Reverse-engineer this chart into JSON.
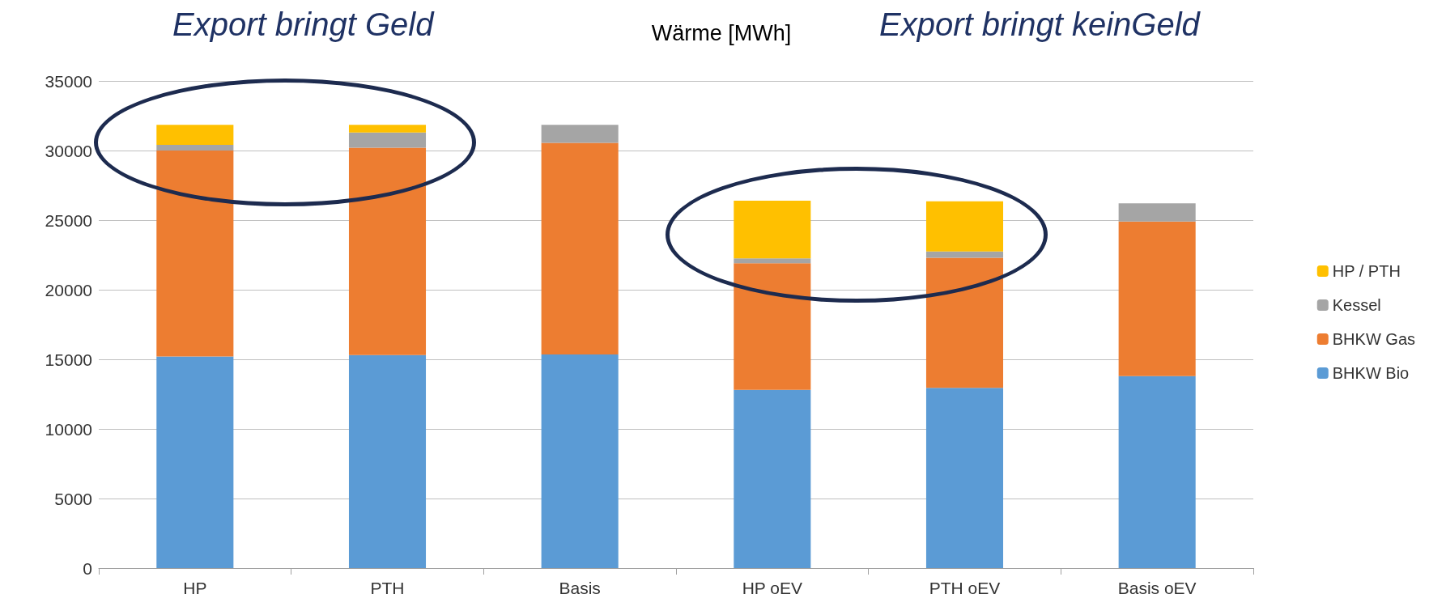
{
  "chart_data": {
    "type": "bar",
    "title": "Wärme [MWh]",
    "annotations": [
      "Export bringt Geld",
      "Export bringt keinGeld"
    ],
    "categories": [
      "HP",
      "PTH",
      "Basis",
      "HP oEV",
      "PTH oEV",
      "Basis oEV"
    ],
    "stacked": true,
    "series": [
      {
        "name": "BHKW Bio",
        "color": "#5b9bd5",
        "values": [
          15200,
          15300,
          15350,
          12800,
          12950,
          13800
        ]
      },
      {
        "name": "BHKW Gas",
        "color": "#ed7d31",
        "values": [
          14800,
          14900,
          15200,
          9100,
          9350,
          11100
        ]
      },
      {
        "name": "Kessel",
        "color": "#a5a5a5",
        "values": [
          400,
          1100,
          1300,
          350,
          450,
          1300
        ]
      },
      {
        "name": "HP / PTH",
        "color": "#ffc000",
        "values": [
          1450,
          550,
          0,
          4150,
          3600,
          0
        ]
      }
    ],
    "ylim": [
      0,
      35000
    ],
    "yticks": [
      0,
      5000,
      10000,
      15000,
      20000,
      25000,
      30000,
      35000
    ],
    "grid": "y",
    "legend": "right"
  }
}
